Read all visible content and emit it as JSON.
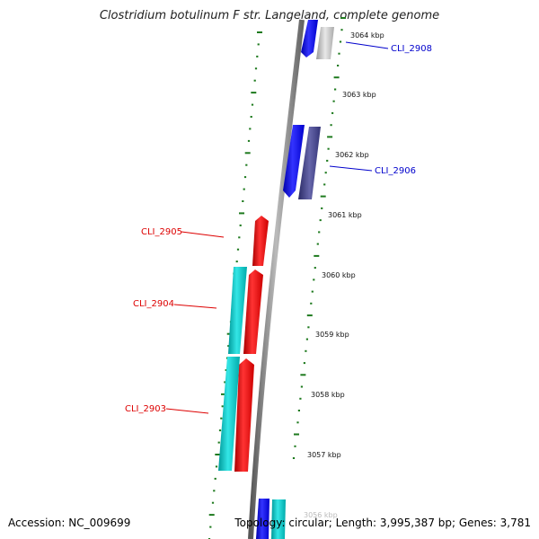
{
  "title": "Clostridium botulinum F str. Langeland, complete genome",
  "accession": "Accession: NC_009699",
  "topology": "Topology: circular; Length: 3,995,387 bp; Genes: 3,781",
  "ticks": [
    "3064 kbp",
    "3063 kbp",
    "3062 kbp",
    "3061 kbp",
    "3060 kbp",
    "3059 kbp",
    "3058 kbp",
    "3057 kbp",
    "3056 kbp"
  ],
  "genes": [
    {
      "label": "CLI_2908",
      "color": "#0000cc"
    },
    {
      "label": "CLI_2906",
      "color": "#0000cc"
    },
    {
      "label": "CLI_2905",
      "color": "#dd0000"
    },
    {
      "label": "CLI_2904",
      "color": "#dd0000"
    },
    {
      "label": "CLI_2903",
      "color": "#dd0000"
    }
  ],
  "colors": {
    "backbone": "#888888",
    "tick_green": "#1e7a1e",
    "forward_gene": "#0000ff",
    "pale_gene": "#c8c8c8",
    "dark_gene": "#4a4a8a",
    "reverse_gene": "#ff0000",
    "cyan_gene": "#00cccc",
    "cyan_light": "#00ffff"
  }
}
